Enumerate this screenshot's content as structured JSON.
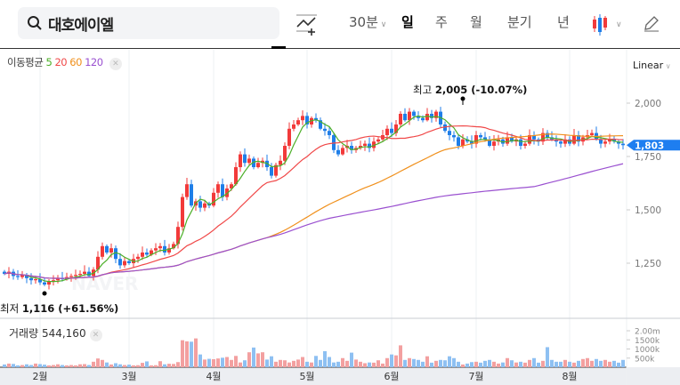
{
  "search": {
    "query": "대호에이엘",
    "icon": "search-icon"
  },
  "toolbar": {
    "interval": "30분",
    "tabs": [
      "일",
      "주",
      "월",
      "분기",
      "년"
    ],
    "active": "일",
    "chart_type_icon": "candlestick-icon",
    "draw_icon": "pencil-icon",
    "indicator_icon": "add-indicator-icon"
  },
  "ma_legend": {
    "label": "이동평균",
    "periods": [
      "5",
      "20",
      "60",
      "120"
    ],
    "colors": [
      "#4caf28",
      "#f04848",
      "#f0901c",
      "#9a50d0"
    ]
  },
  "scale": "Linear",
  "price_labels": [
    "2,000",
    "1,750",
    "1,500",
    "1,250"
  ],
  "current_price": "1,803",
  "high_label": {
    "prefix": "최고",
    "value": "2,005 (-10.07%)"
  },
  "low_label": {
    "prefix": "최저",
    "value": "1,116 (+61.56%)"
  },
  "volume": {
    "label": "거래량",
    "value": "544,160",
    "axis": [
      "2.00m",
      "1500k",
      "1000k",
      "500k"
    ]
  },
  "months": [
    "2월",
    "3월",
    "4월",
    "5월",
    "6월",
    "7월",
    "8월"
  ],
  "colors": {
    "up": "#f23a3a",
    "down": "#1f7ee8",
    "current": "#1e7ef0"
  },
  "chart_data": {
    "type": "candlestick",
    "closes": [
      1200,
      1210,
      1190,
      1185,
      1195,
      1180,
      1170,
      1175,
      1160,
      1150,
      1165,
      1170,
      1180,
      1175,
      1185,
      1190,
      1195,
      1200,
      1210,
      1190,
      1220,
      1280,
      1330,
      1300,
      1320,
      1270,
      1240,
      1260,
      1250,
      1270,
      1280,
      1300,
      1290,
      1310,
      1320,
      1330,
      1300,
      1320,
      1340,
      1420,
      1560,
      1620,
      1520,
      1540,
      1510,
      1530,
      1520,
      1580,
      1620,
      1560,
      1600,
      1620,
      1700,
      1760,
      1720,
      1740,
      1700,
      1720,
      1730,
      1700,
      1660,
      1710,
      1730,
      1800,
      1880,
      1900,
      1920,
      1940,
      1900,
      1930,
      1920,
      1880,
      1870,
      1850,
      1780,
      1760,
      1790,
      1800,
      1780,
      1790,
      1800,
      1810,
      1790,
      1820,
      1830,
      1850,
      1880,
      1860,
      1900,
      1950,
      1920,
      1960,
      1940,
      1930,
      1920,
      1950,
      1930,
      1960,
      1900,
      1870,
      1850,
      1840,
      1800,
      1830,
      1820,
      1810,
      1850,
      1840,
      1830,
      1800,
      1820,
      1830,
      1810,
      1840,
      1820,
      1830,
      1800,
      1810,
      1850,
      1830,
      1820,
      1860,
      1840,
      1830,
      1820,
      1810,
      1830,
      1810,
      1850,
      1820,
      1840,
      1850,
      1860,
      1830,
      1810,
      1820,
      1830,
      1820,
      1810,
      1803
    ],
    "volumes_k": [
      150,
      200,
      180,
      100,
      120,
      160,
      120,
      200,
      170,
      140,
      100,
      120,
      160,
      120,
      100,
      120,
      100,
      160,
      170,
      120,
      300,
      480,
      400,
      260,
      150,
      220,
      160,
      120,
      140,
      100,
      110,
      240,
      320,
      100,
      110,
      330,
      160,
      190,
      180,
      280,
      1480,
      1420,
      1400,
      1580,
      700,
      420,
      460,
      440,
      480,
      520,
      560,
      400,
      620,
      260,
      380,
      820,
      1080,
      760,
      820,
      420,
      600,
      300,
      400,
      380,
      260,
      350,
      420,
      560,
      300,
      260,
      620,
      400,
      880,
      560,
      260,
      300,
      500,
      350,
      800,
      420,
      300,
      220,
      260,
      250,
      380,
      200,
      500,
      700,
      650,
      1200,
      400,
      500,
      450,
      400,
      300,
      600,
      250,
      350,
      400,
      380,
      600,
      500,
      300,
      150,
      200,
      280,
      300,
      250,
      350,
      400,
      300,
      200,
      260,
      500,
      380,
      260,
      300,
      250,
      400,
      500,
      250,
      350,
      1100,
      400,
      300,
      300,
      400,
      300,
      250,
      350,
      450,
      500,
      350,
      450,
      350,
      400,
      300,
      350,
      250,
      400,
      300,
      200,
      450,
      544
    ]
  }
}
